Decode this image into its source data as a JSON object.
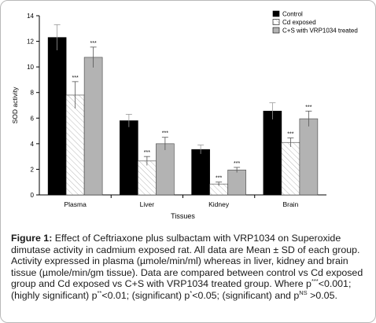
{
  "chart_data": {
    "type": "bar",
    "title": "",
    "xlabel": "Tissues",
    "ylabel": "SOD activity",
    "ylim": [
      0,
      14
    ],
    "yticks": [
      0,
      2,
      4,
      6,
      8,
      10,
      12,
      14
    ],
    "categories": [
      "Plasma",
      "Liver",
      "Kidney",
      "Brain"
    ],
    "legend_position": "top-right",
    "grid": false,
    "series": [
      {
        "name": "Control",
        "values": [
          12.3,
          5.8,
          3.55,
          6.55
        ],
        "errors": [
          1.0,
          0.5,
          0.35,
          0.65
        ],
        "annotations": [
          "",
          "",
          "",
          ""
        ]
      },
      {
        "name": "Cd exposed",
        "values": [
          7.8,
          2.65,
          0.85,
          4.1
        ],
        "errors": [
          1.05,
          0.35,
          0.15,
          0.35
        ],
        "annotations": [
          "***",
          "***",
          "***",
          "***"
        ]
      },
      {
        "name": "C+S with VRP1034 treated",
        "values": [
          10.75,
          4.0,
          1.95,
          5.95
        ],
        "errors": [
          0.8,
          0.5,
          0.2,
          0.6
        ],
        "annotations": [
          "***",
          "***",
          "***",
          "***"
        ]
      }
    ],
    "colors": {
      "control": "#000000",
      "cd_exposed": "#ffffff",
      "treated": "#b3b3b3"
    }
  },
  "caption": {
    "label": "Figure 1:",
    "text": "Effect of Ceftriaxone plus sulbactam with VRP1034 on Superoxide dimutase activity in cadmium exposed rat. All data are Mean ± SD of each group. Activity expressed in plasma (µmole/min/ml) whereas in liver, kidney and brain tissue (µmole/min/gm tissue). Data are compared between control vs Cd exposed group and Cd exposed vs C+S with VRP1034 treated group. Where p",
    "sup1": "***",
    "text2": "<0.001; (highly significant) p",
    "sup2": "**",
    "text3": "<0.01; (significant) p",
    "sup3": "*",
    "text4": "<0.05; (significant) and p",
    "sup4": "NS",
    "text5": " >0.05."
  }
}
